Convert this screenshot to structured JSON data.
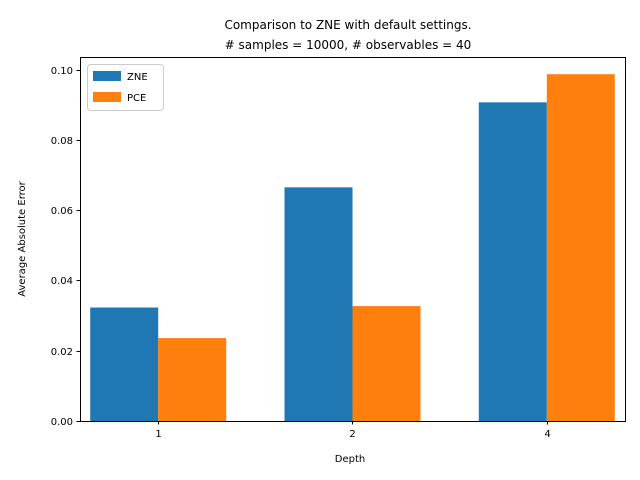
{
  "chart_data": {
    "type": "bar",
    "title": "Comparison to ZNE with default settings.",
    "subtitle": "# samples = 10000, # observables = 40",
    "xlabel": "Depth",
    "ylabel": "Average Absolute Error",
    "categories": [
      "1",
      "2",
      "4"
    ],
    "series": [
      {
        "name": "ZNE",
        "color": "#1f77b4",
        "values": [
          0.0323,
          0.0665,
          0.0907
        ]
      },
      {
        "name": "PCE",
        "color": "#ff7f0e",
        "values": [
          0.0236,
          0.0327,
          0.0987
        ]
      }
    ],
    "ylim": [
      0,
      0.1036
    ],
    "yticks": [
      0.0,
      0.02,
      0.04,
      0.06,
      0.08,
      0.1
    ],
    "ytick_labels": [
      "0.00",
      "0.02",
      "0.04",
      "0.06",
      "0.08",
      "0.10"
    ],
    "grid": false,
    "legend_position": "upper left"
  }
}
